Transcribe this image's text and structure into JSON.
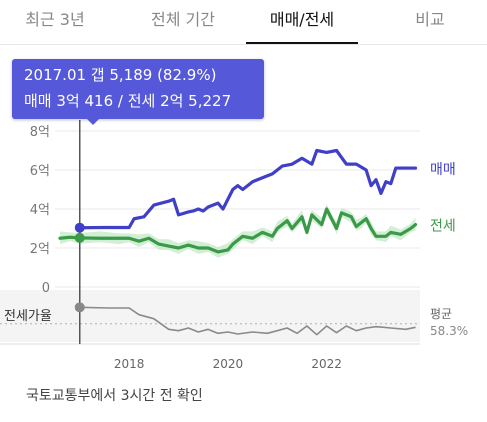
{
  "tabs": [
    {
      "label": "최근 3년",
      "active": false
    },
    {
      "label": "전체 기간",
      "active": false
    },
    {
      "label": "매매/전세",
      "active": true
    },
    {
      "label": "비교",
      "active": false
    }
  ],
  "tooltip": {
    "line1": "2017.01  갭 5,189 (82.9%)",
    "line2": "매매 3억 416 / 전세 2억 5,227"
  },
  "source_text": "국토교통부에서 3시간 전 확인",
  "colors": {
    "sale": "#3f3fc8",
    "lease": "#3a9a48",
    "lease_band": "#bfe8c3",
    "ratio": "#8a8a8a",
    "tooltip": "#5558d8"
  },
  "chart_data": [
    {
      "type": "line",
      "x_ticks": [
        "2018",
        "2020",
        "2022"
      ],
      "y_ticks": [
        "0",
        "2억",
        "4억",
        "6억",
        "8억"
      ],
      "ylim": [
        0,
        8
      ],
      "series": [
        {
          "name": "매매",
          "label": "매매",
          "color": "#3f3fc8",
          "points": [
            [
              2017.0,
              3.04
            ],
            [
              2017.5,
              3.05
            ],
            [
              2018.0,
              3.05
            ],
            [
              2018.1,
              3.5
            ],
            [
              2018.3,
              3.6
            ],
            [
              2018.5,
              4.2
            ],
            [
              2018.8,
              4.4
            ],
            [
              2018.9,
              4.5
            ],
            [
              2019.0,
              3.7
            ],
            [
              2019.2,
              3.85
            ],
            [
              2019.3,
              3.9
            ],
            [
              2019.4,
              4.0
            ],
            [
              2019.5,
              3.9
            ],
            [
              2019.6,
              4.1
            ],
            [
              2019.8,
              4.3
            ],
            [
              2019.9,
              4.0
            ],
            [
              2020.1,
              5.0
            ],
            [
              2020.2,
              5.2
            ],
            [
              2020.3,
              5.0
            ],
            [
              2020.5,
              5.4
            ],
            [
              2020.7,
              5.6
            ],
            [
              2020.9,
              5.8
            ],
            [
              2021.1,
              6.2
            ],
            [
              2021.3,
              6.3
            ],
            [
              2021.5,
              6.6
            ],
            [
              2021.7,
              6.3
            ],
            [
              2021.8,
              7.0
            ],
            [
              2022.0,
              6.9
            ],
            [
              2022.2,
              7.0
            ],
            [
              2022.4,
              6.3
            ],
            [
              2022.6,
              6.3
            ],
            [
              2022.8,
              6.0
            ],
            [
              2022.9,
              5.2
            ],
            [
              2023.0,
              5.5
            ],
            [
              2023.1,
              4.8
            ],
            [
              2023.2,
              5.4
            ],
            [
              2023.3,
              5.3
            ],
            [
              2023.4,
              6.1
            ],
            [
              2023.6,
              6.1
            ],
            [
              2023.8,
              6.1
            ]
          ]
        },
        {
          "name": "전세",
          "label": "전세",
          "color": "#3a9a48",
          "points": [
            [
              2016.6,
              2.5
            ],
            [
              2016.8,
              2.55
            ],
            [
              2017.0,
              2.52
            ],
            [
              2017.4,
              2.5
            ],
            [
              2017.8,
              2.5
            ],
            [
              2018.0,
              2.5
            ],
            [
              2018.2,
              2.35
            ],
            [
              2018.4,
              2.5
            ],
            [
              2018.6,
              2.2
            ],
            [
              2018.8,
              2.1
            ],
            [
              2019.0,
              2.0
            ],
            [
              2019.2,
              2.15
            ],
            [
              2019.4,
              2.0
            ],
            [
              2019.6,
              2.0
            ],
            [
              2019.8,
              1.8
            ],
            [
              2020.0,
              1.9
            ],
            [
              2020.1,
              2.2
            ],
            [
              2020.3,
              2.6
            ],
            [
              2020.5,
              2.5
            ],
            [
              2020.7,
              2.8
            ],
            [
              2020.9,
              2.6
            ],
            [
              2021.0,
              3.0
            ],
            [
              2021.2,
              3.4
            ],
            [
              2021.3,
              3.0
            ],
            [
              2021.5,
              3.6
            ],
            [
              2021.6,
              2.8
            ],
            [
              2021.7,
              3.7
            ],
            [
              2021.9,
              3.2
            ],
            [
              2022.0,
              4.0
            ],
            [
              2022.1,
              3.5
            ],
            [
              2022.2,
              3.0
            ],
            [
              2022.3,
              3.8
            ],
            [
              2022.5,
              3.6
            ],
            [
              2022.6,
              3.1
            ],
            [
              2022.7,
              3.3
            ],
            [
              2022.8,
              3.5
            ],
            [
              2022.9,
              3.0
            ],
            [
              2023.0,
              2.6
            ],
            [
              2023.2,
              2.6
            ],
            [
              2023.3,
              2.8
            ],
            [
              2023.5,
              2.7
            ],
            [
              2023.7,
              3.0
            ],
            [
              2023.8,
              3.2
            ]
          ]
        }
      ],
      "highlight_x": 2017.0
    },
    {
      "type": "line",
      "label": "전세가율",
      "average_label": "평균",
      "average_value": "58.3%",
      "average": 58.3,
      "series": [
        {
          "name": "전세가율",
          "color": "#8a8a8a",
          "points": [
            [
              2017.0,
              83
            ],
            [
              2017.6,
              82
            ],
            [
              2018.0,
              82
            ],
            [
              2018.2,
              72
            ],
            [
              2018.5,
              66
            ],
            [
              2018.8,
              50
            ],
            [
              2019.0,
              48
            ],
            [
              2019.2,
              52
            ],
            [
              2019.4,
              46
            ],
            [
              2019.6,
              50
            ],
            [
              2019.8,
              44
            ],
            [
              2020.0,
              46
            ],
            [
              2020.2,
              43
            ],
            [
              2020.5,
              46
            ],
            [
              2020.8,
              44
            ],
            [
              2021.0,
              48
            ],
            [
              2021.2,
              52
            ],
            [
              2021.4,
              44
            ],
            [
              2021.6,
              55
            ],
            [
              2021.8,
              42
            ],
            [
              2022.0,
              55
            ],
            [
              2022.2,
              45
            ],
            [
              2022.4,
              55
            ],
            [
              2022.6,
              48
            ],
            [
              2022.8,
              52
            ],
            [
              2023.0,
              54
            ],
            [
              2023.3,
              52
            ],
            [
              2023.6,
              50
            ],
            [
              2023.8,
              53
            ]
          ]
        }
      ]
    }
  ]
}
